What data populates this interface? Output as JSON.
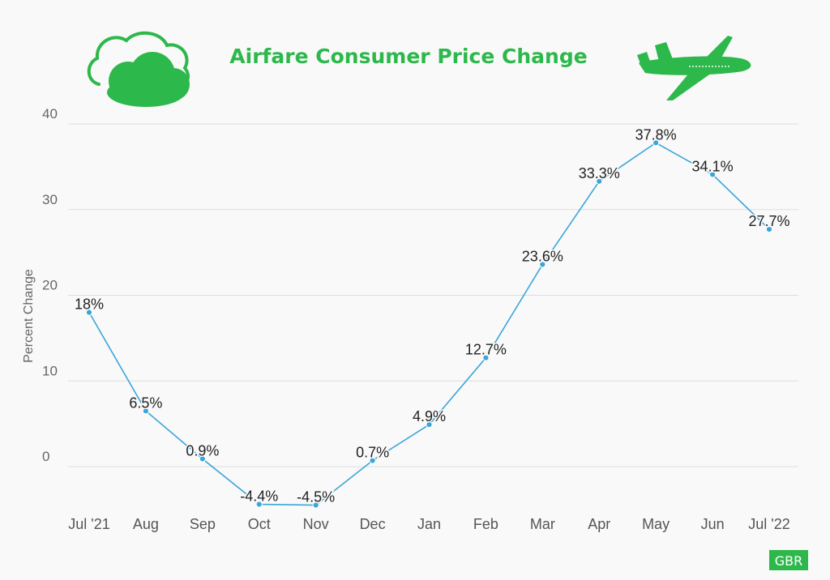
{
  "header": {
    "title": "Airfare Consumer Price Change",
    "left_icon": "cloud-icon",
    "right_icon": "airplane-icon"
  },
  "colors": {
    "accent": "#2db84b",
    "line": "#3aa6d8",
    "grid": "#dddddd",
    "background": "#f9f9f9"
  },
  "chart_data": {
    "type": "line",
    "title": "Airfare Consumer Price Change",
    "xlabel": "",
    "ylabel": "Percent Change",
    "categories": [
      "Jul '21",
      "Aug",
      "Sep",
      "Oct",
      "Nov",
      "Dec",
      "Jan",
      "Feb",
      "Mar",
      "Apr",
      "May",
      "Jun",
      "Jul '22"
    ],
    "series": [
      {
        "values": [
          18,
          6.5,
          0.9,
          -4.4,
          -4.5,
          0.7,
          4.9,
          12.7,
          23.6,
          33.3,
          37.8,
          34.1,
          27.7
        ],
        "labels": [
          "18%",
          "6.5%",
          "0.9%",
          "-4.4%",
          "-4.5%",
          "0.7%",
          "4.9%",
          "12.7%",
          "23.6%",
          "33.3%",
          "37.8%",
          "34.1%",
          "27.7%"
        ]
      }
    ],
    "yticks": [
      0,
      10,
      20,
      30,
      40
    ],
    "ytick_labels": [
      "0",
      "10",
      "20",
      "30",
      "40"
    ],
    "ylim": [
      -5,
      40
    ],
    "grid": true,
    "legend": "none"
  },
  "footer": {
    "badge": "GBR"
  }
}
